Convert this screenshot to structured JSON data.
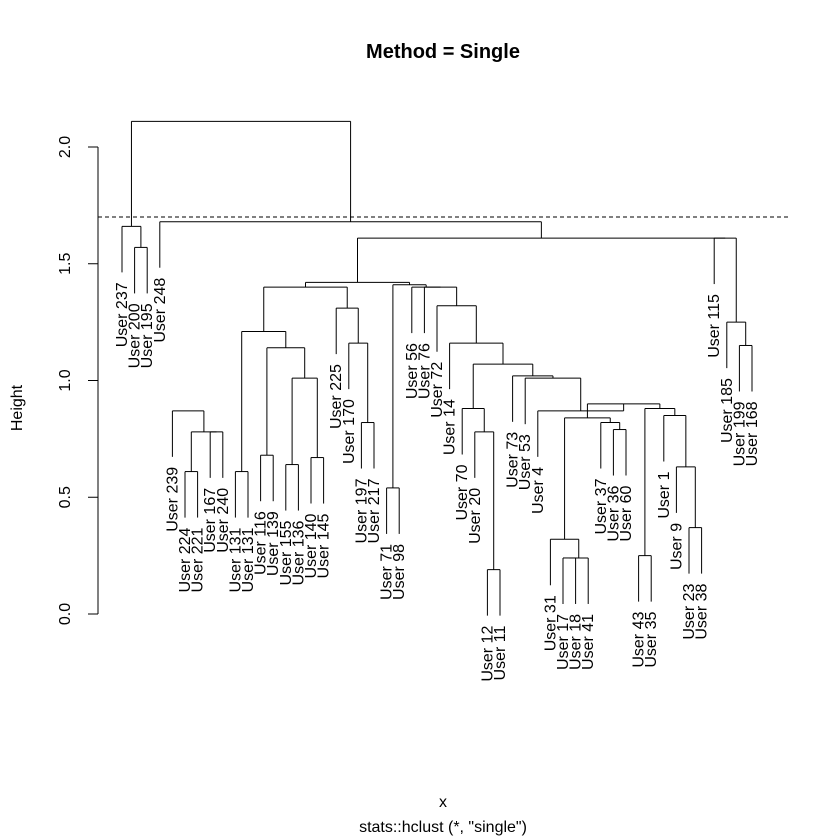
{
  "chart_data": {
    "type": "dendrogram",
    "title": "Method = Single",
    "ylabel": "Height",
    "xlabel": "x",
    "sublabel": "stats::hclust (*, \"single\")",
    "ylim": [
      0,
      2.2
    ],
    "yticks": [
      "0.0",
      "0.5",
      "1.0",
      "1.5",
      "2.0"
    ],
    "cut_height": 1.7,
    "leaves": [
      "User 237",
      "User 200",
      "User 195",
      "User 248",
      "User 239",
      "User 224",
      "User 221",
      "User 167",
      "User 240",
      "User 131",
      "User 131",
      "User 116",
      "User 139",
      "User 155",
      "User 136",
      "User 140",
      "User 145",
      "User 225",
      "User 170",
      "User 197",
      "User 217",
      "User 71",
      "User 98",
      "User 56",
      "User 76",
      "User 72",
      "User 14",
      "User 70",
      "User 20",
      "User 12",
      "User 11",
      "User 73",
      "User 53",
      "User 4",
      "User 31",
      "User 17",
      "User 18",
      "User 41",
      "User 37",
      "User 36",
      "User 60",
      "User 43",
      "User 35",
      "User 1",
      "User 9",
      "User 23",
      "User 38",
      "User 115",
      "User 185",
      "User 199",
      "User 168"
    ],
    "merges": [
      {
        "id": "m1",
        "children": [
          "L1",
          "L2"
        ],
        "height": 1.57
      },
      {
        "id": "m2",
        "children": [
          "L0",
          "m1"
        ],
        "height": 1.66
      },
      {
        "id": "m3",
        "children": [
          "L5",
          "L6"
        ],
        "height": 0.61
      },
      {
        "id": "m4",
        "children": [
          "L7",
          "L8"
        ],
        "height": 0.78
      },
      {
        "id": "m5",
        "children": [
          "m3",
          "m4"
        ],
        "height": 0.78
      },
      {
        "id": "m6",
        "children": [
          "L4",
          "m5"
        ],
        "height": 0.87
      },
      {
        "id": "m7",
        "children": [
          "L9",
          "L10"
        ],
        "height": 0.61
      },
      {
        "id": "m8",
        "children": [
          "L11",
          "L12"
        ],
        "height": 0.68
      },
      {
        "id": "m9",
        "children": [
          "L13",
          "L14"
        ],
        "height": 0.64
      },
      {
        "id": "m10",
        "children": [
          "L15",
          "L16"
        ],
        "height": 0.67
      },
      {
        "id": "m11",
        "children": [
          "m9",
          "m10"
        ],
        "height": 1.01
      },
      {
        "id": "m12",
        "children": [
          "m8",
          "m11"
        ],
        "height": 1.14
      },
      {
        "id": "m13",
        "children": [
          "m7",
          "m12"
        ],
        "height": 1.21
      },
      {
        "id": "m14",
        "children": [
          "L19",
          "L20"
        ],
        "height": 0.82
      },
      {
        "id": "m15",
        "children": [
          "L18",
          "m14"
        ],
        "height": 1.16
      },
      {
        "id": "m16",
        "children": [
          "L17",
          "m15"
        ],
        "height": 1.31
      },
      {
        "id": "m17",
        "children": [
          "m13",
          "m16"
        ],
        "height": 1.4
      },
      {
        "id": "m18",
        "children": [
          "L21",
          "L22"
        ],
        "height": 0.54
      },
      {
        "id": "m19",
        "children": [
          "L29",
          "L30"
        ],
        "height": 0.19
      },
      {
        "id": "m20",
        "children": [
          "L28",
          "m19"
        ],
        "height": 0.78
      },
      {
        "id": "m21",
        "children": [
          "L27",
          "m20"
        ],
        "height": 0.88
      },
      {
        "id": "m22",
        "children": [
          "L35",
          "L36"
        ],
        "height": 0.24
      },
      {
        "id": "m23",
        "children": [
          "m22",
          "L37"
        ],
        "height": 0.24
      },
      {
        "id": "m24",
        "children": [
          "L34",
          "m23"
        ],
        "height": 0.32
      },
      {
        "id": "m25",
        "children": [
          "L39",
          "L40"
        ],
        "height": 0.79
      },
      {
        "id": "m26",
        "children": [
          "L38",
          "m25"
        ],
        "height": 0.82
      },
      {
        "id": "m27",
        "children": [
          "m24",
          "m26"
        ],
        "height": 0.84
      },
      {
        "id": "m28",
        "children": [
          "L41",
          "L42"
        ],
        "height": 0.25
      },
      {
        "id": "m29",
        "children": [
          "L45",
          "L46"
        ],
        "height": 0.37
      },
      {
        "id": "m30",
        "children": [
          "L44",
          "m29"
        ],
        "height": 0.63
      },
      {
        "id": "m31",
        "children": [
          "L43",
          "m30"
        ],
        "height": 0.85
      },
      {
        "id": "m32",
        "children": [
          "m28",
          "m31"
        ],
        "height": 0.88
      },
      {
        "id": "m33",
        "children": [
          "m27",
          "m32"
        ],
        "height": 0.9
      },
      {
        "id": "m34",
        "children": [
          "L33",
          "m33"
        ],
        "height": 0.87
      },
      {
        "id": "m35",
        "children": [
          "L32",
          "m34"
        ],
        "height": 1.01
      },
      {
        "id": "m36",
        "children": [
          "L31",
          "m35"
        ],
        "height": 1.02
      },
      {
        "id": "m37",
        "children": [
          "m21",
          "m36"
        ],
        "height": 1.07
      },
      {
        "id": "m38",
        "children": [
          "L26",
          "m37"
        ],
        "height": 1.16
      },
      {
        "id": "m39",
        "children": [
          "L25",
          "m38"
        ],
        "height": 1.32
      },
      {
        "id": "m40",
        "children": [
          "L24",
          "m39"
        ],
        "height": 1.4
      },
      {
        "id": "m41",
        "children": [
          "L23",
          "m40"
        ],
        "height": 1.4
      },
      {
        "id": "m42",
        "children": [
          "m18",
          "m41"
        ],
        "height": 1.41
      },
      {
        "id": "m43",
        "children": [
          "m17",
          "m42"
        ],
        "height": 1.42
      },
      {
        "id": "m44",
        "children": [
          "L49",
          "L50"
        ],
        "height": 1.15
      },
      {
        "id": "m45",
        "children": [
          "L48",
          "m44"
        ],
        "height": 1.25
      },
      {
        "id": "m46",
        "children": [
          "L47",
          "m45"
        ],
        "height": 1.61
      },
      {
        "id": "m47",
        "children": [
          "m43",
          "m46"
        ],
        "height": 1.61
      },
      {
        "id": "m48",
        "children": [
          "L3",
          "m47"
        ],
        "height": 1.68
      },
      {
        "id": "m49",
        "children": [
          "m2",
          "m48"
        ],
        "height": 2.11
      }
    ]
  }
}
